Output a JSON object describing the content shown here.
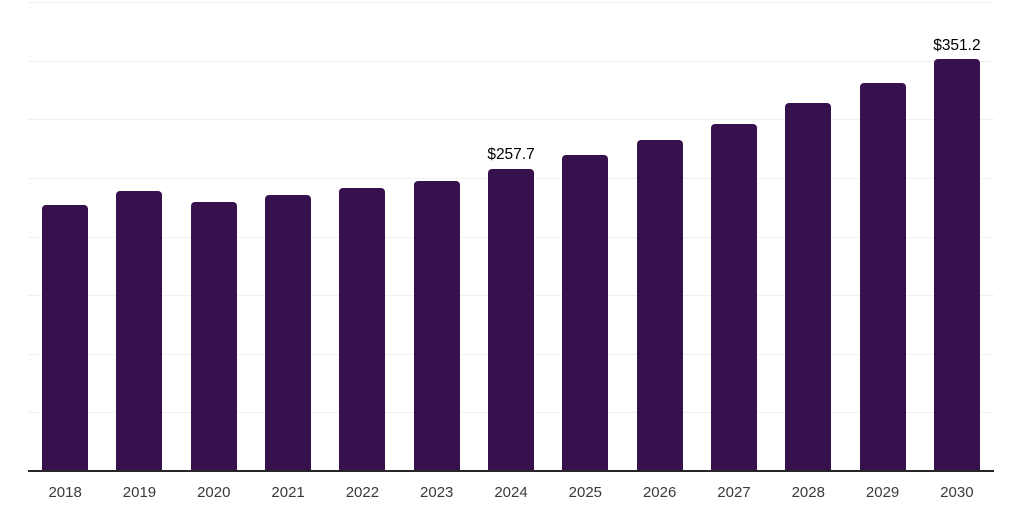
{
  "chart_data": {
    "type": "bar",
    "title": "",
    "xlabel": "",
    "ylabel": "",
    "categories": [
      "2018",
      "2019",
      "2020",
      "2021",
      "2022",
      "2023",
      "2024",
      "2025",
      "2026",
      "2027",
      "2028",
      "2029",
      "2030"
    ],
    "values": [
      227.0,
      238.5,
      229.5,
      235.5,
      241.5,
      247.5,
      257.7,
      269.5,
      282.5,
      296.0,
      314.0,
      331.0,
      351.2
    ],
    "data_labels": [
      "",
      "",
      "",
      "",
      "",
      "",
      "$257.7",
      "",
      "",
      "",
      "",
      "",
      "$351.2"
    ],
    "ylim": [
      0,
      400
    ],
    "grid_step": 50,
    "grid_on": true,
    "legend": "none",
    "colors": {
      "bar": "#36114D",
      "gridline": "#efefef",
      "axis_line": "#262626",
      "value_label": "#000000",
      "tick_label": "#3a3a3a",
      "background": "#ffffff"
    }
  }
}
